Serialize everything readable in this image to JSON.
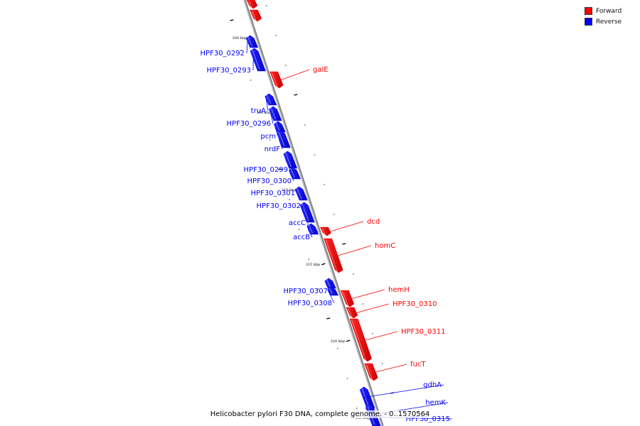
{
  "legend": {
    "forward_label": "Forward",
    "reverse_label": "Reverse",
    "forward_color": "#ff0000",
    "reverse_color": "#0000ff"
  },
  "caption": "Helicobacter pylori F30 DNA, complete genome. - 0..1570564",
  "scale_ticks": [
    {
      "label": "300 kbp"
    },
    {
      "label": "305 kbp"
    },
    {
      "label": "310 kbp"
    },
    {
      "label": "315 kbp"
    },
    {
      "label": "320 kbp"
    },
    {
      "label": "325 kbp"
    }
  ],
  "genes": [
    {
      "name": "",
      "strand": "forward"
    },
    {
      "name": "",
      "strand": "forward"
    },
    {
      "name": "HPF30_0292",
      "strand": "reverse"
    },
    {
      "name": "HPF30_0293",
      "strand": "reverse"
    },
    {
      "name": "galE",
      "strand": "forward"
    },
    {
      "name": "truA",
      "strand": "reverse"
    },
    {
      "name": "HPF30_0296",
      "strand": "reverse"
    },
    {
      "name": "pcm",
      "strand": "reverse"
    },
    {
      "name": "nrdF",
      "strand": "reverse"
    },
    {
      "name": "HPF30_0299",
      "strand": "reverse"
    },
    {
      "name": "HPF30_0300",
      "strand": "reverse"
    },
    {
      "name": "HPF30_0301",
      "strand": "reverse"
    },
    {
      "name": "HPF30_0302",
      "strand": "reverse"
    },
    {
      "name": "accC",
      "strand": "reverse"
    },
    {
      "name": "accB",
      "strand": "reverse"
    },
    {
      "name": "dcd",
      "strand": "forward"
    },
    {
      "name": "homC",
      "strand": "forward"
    },
    {
      "name": "HPF30_0307",
      "strand": "reverse"
    },
    {
      "name": "HPF30_0308",
      "strand": "reverse"
    },
    {
      "name": "hemH",
      "strand": "forward"
    },
    {
      "name": "HPF30_0310",
      "strand": "forward"
    },
    {
      "name": "HPF30_0311",
      "strand": "forward"
    },
    {
      "name": "fucT",
      "strand": "forward"
    },
    {
      "name": "gdhA",
      "strand": "reverse"
    },
    {
      "name": "hemK",
      "strand": "reverse"
    },
    {
      "name": "HPF30_0315",
      "strand": "reverse"
    }
  ]
}
